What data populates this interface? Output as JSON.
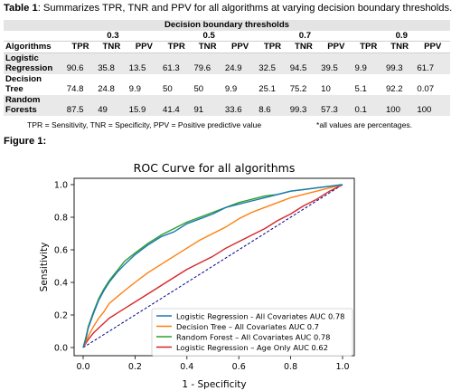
{
  "caption": {
    "label": "Table 1",
    "text": ": Summarizes TPR, TNR and PPV for all algorithms at varying decision boundary thresholds."
  },
  "table": {
    "group_header": "Decision boundary thresholds",
    "thresholds": [
      "0.3",
      "0.5",
      "0.7",
      "0.9"
    ],
    "col_headers": [
      "Algorithms",
      "TPR",
      "TNR",
      "PPV",
      "TPR",
      "TNR",
      "PPV",
      "TPR",
      "TNR",
      "PPV",
      "TPR",
      "TNR",
      "PPV"
    ],
    "rows": [
      {
        "line1": "Logistic",
        "line2": "Regression",
        "values": [
          "90.6",
          "35.8",
          "13.5",
          "61.3",
          "79.6",
          "24.9",
          "32.5",
          "94.5",
          "39.5",
          "9.9",
          "99.3",
          "61.7"
        ]
      },
      {
        "line1": "Decision",
        "line2": "Tree",
        "values": [
          "74.8",
          "24.8",
          "9.9",
          "50",
          "50",
          "9.9",
          "25.1",
          "75.2",
          "10",
          "5.1",
          "92.2",
          "0.07"
        ]
      },
      {
        "line1": "Random",
        "line2": "Forests",
        "values": [
          "87.5",
          "49",
          "15.9",
          "41.4",
          "91",
          "33.6",
          "8.6",
          "99.3",
          "57.3",
          "0.1",
          "100",
          "100"
        ]
      }
    ],
    "note_left": "TPR = Sensitivity,  TNR = Specificity,  PPV  = Positive predictive value",
    "note_right": "*all values are percentages."
  },
  "figure_label": "Figure 1:",
  "chart_data": {
    "type": "line",
    "title": "ROC Curve for all algorithms",
    "xlabel": "1 - Specificity",
    "ylabel": "Sensitivity",
    "xlim": [
      0.0,
      1.0
    ],
    "ylim": [
      0.0,
      1.0
    ],
    "xticks": [
      "0.0",
      "0.2",
      "0.4",
      "0.6",
      "0.8",
      "1.0"
    ],
    "yticks": [
      "0.0",
      "0.2",
      "0.4",
      "0.6",
      "0.8",
      "1.0"
    ],
    "grid": false,
    "legend_position": "bottom-right",
    "series": [
      {
        "name": "Logistic Regression - All Covariates AUC 0.78",
        "color": "#1f77b4",
        "points": [
          [
            0,
            0
          ],
          [
            0.01,
            0.05
          ],
          [
            0.02,
            0.12
          ],
          [
            0.04,
            0.21
          ],
          [
            0.06,
            0.29
          ],
          [
            0.08,
            0.35
          ],
          [
            0.1,
            0.4
          ],
          [
            0.13,
            0.46
          ],
          [
            0.16,
            0.51
          ],
          [
            0.2,
            0.57
          ],
          [
            0.25,
            0.63
          ],
          [
            0.3,
            0.68
          ],
          [
            0.35,
            0.71
          ],
          [
            0.4,
            0.76
          ],
          [
            0.45,
            0.79
          ],
          [
            0.5,
            0.82
          ],
          [
            0.55,
            0.86
          ],
          [
            0.6,
            0.88
          ],
          [
            0.65,
            0.9
          ],
          [
            0.7,
            0.92
          ],
          [
            0.75,
            0.94
          ],
          [
            0.8,
            0.96
          ],
          [
            0.85,
            0.97
          ],
          [
            0.9,
            0.98
          ],
          [
            0.95,
            0.99
          ],
          [
            1,
            1
          ]
        ]
      },
      {
        "name": "Decision Tree – All Covariates AUC 0.7",
        "color": "#ff7f0e",
        "points": [
          [
            0,
            0
          ],
          [
            0.02,
            0.07
          ],
          [
            0.04,
            0.13
          ],
          [
            0.06,
            0.18
          ],
          [
            0.08,
            0.22
          ],
          [
            0.1,
            0.27
          ],
          [
            0.13,
            0.31
          ],
          [
            0.16,
            0.35
          ],
          [
            0.2,
            0.4
          ],
          [
            0.25,
            0.46
          ],
          [
            0.3,
            0.51
          ],
          [
            0.35,
            0.56
          ],
          [
            0.4,
            0.61
          ],
          [
            0.45,
            0.66
          ],
          [
            0.5,
            0.7
          ],
          [
            0.55,
            0.74
          ],
          [
            0.6,
            0.79
          ],
          [
            0.65,
            0.83
          ],
          [
            0.7,
            0.86
          ],
          [
            0.75,
            0.89
          ],
          [
            0.8,
            0.92
          ],
          [
            0.85,
            0.94
          ],
          [
            0.9,
            0.96
          ],
          [
            0.95,
            0.98
          ],
          [
            1,
            1
          ]
        ]
      },
      {
        "name": "Random Forest – All Covariates AUC 0.78",
        "color": "#2ca02c",
        "points": [
          [
            0,
            0
          ],
          [
            0.01,
            0.06
          ],
          [
            0.02,
            0.13
          ],
          [
            0.04,
            0.22
          ],
          [
            0.06,
            0.3
          ],
          [
            0.08,
            0.36
          ],
          [
            0.1,
            0.41
          ],
          [
            0.13,
            0.47
          ],
          [
            0.16,
            0.53
          ],
          [
            0.2,
            0.58
          ],
          [
            0.25,
            0.64
          ],
          [
            0.3,
            0.69
          ],
          [
            0.35,
            0.73
          ],
          [
            0.4,
            0.77
          ],
          [
            0.45,
            0.8
          ],
          [
            0.5,
            0.83
          ],
          [
            0.55,
            0.86
          ],
          [
            0.6,
            0.89
          ],
          [
            0.65,
            0.91
          ],
          [
            0.7,
            0.93
          ],
          [
            0.75,
            0.94
          ],
          [
            0.8,
            0.96
          ],
          [
            0.85,
            0.97
          ],
          [
            0.9,
            0.98
          ],
          [
            0.95,
            0.99
          ],
          [
            1,
            1
          ]
        ]
      },
      {
        "name": "Logistic Regression – Age Only  AUC 0.62",
        "color": "#d62728",
        "points": [
          [
            0,
            0
          ],
          [
            0.02,
            0.05
          ],
          [
            0.04,
            0.09
          ],
          [
            0.06,
            0.12
          ],
          [
            0.08,
            0.15
          ],
          [
            0.1,
            0.18
          ],
          [
            0.13,
            0.21
          ],
          [
            0.16,
            0.24
          ],
          [
            0.2,
            0.28
          ],
          [
            0.25,
            0.33
          ],
          [
            0.3,
            0.38
          ],
          [
            0.35,
            0.43
          ],
          [
            0.4,
            0.48
          ],
          [
            0.45,
            0.52
          ],
          [
            0.5,
            0.56
          ],
          [
            0.55,
            0.61
          ],
          [
            0.6,
            0.65
          ],
          [
            0.65,
            0.69
          ],
          [
            0.7,
            0.73
          ],
          [
            0.75,
            0.78
          ],
          [
            0.8,
            0.82
          ],
          [
            0.85,
            0.87
          ],
          [
            0.9,
            0.91
          ],
          [
            0.95,
            0.96
          ],
          [
            1,
            1
          ]
        ]
      },
      {
        "name": "",
        "color": "#00008b",
        "dashed": true,
        "points": [
          [
            0,
            0
          ],
          [
            1,
            1
          ]
        ]
      }
    ]
  }
}
